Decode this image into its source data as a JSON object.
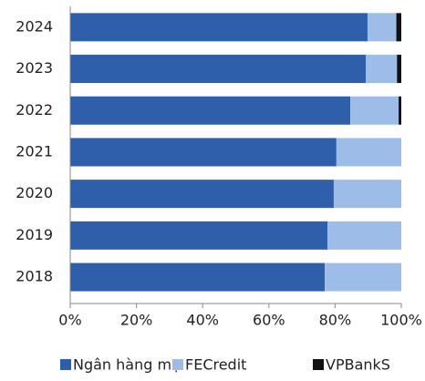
{
  "chart_data": {
    "type": "stacked-barh",
    "categories": [
      "2024",
      "2023",
      "2022",
      "2021",
      "2020",
      "2019",
      "2018"
    ],
    "series": [
      {
        "name": "Ngân hàng mẹ",
        "color": "#2f5eab",
        "values": [
          89.8,
          89.3,
          84.6,
          80.4,
          79.6,
          77.7,
          76.9
        ]
      },
      {
        "name": "FECredit",
        "color": "#9dbde8",
        "values": [
          8.7,
          9.4,
          14.6,
          19.6,
          20.4,
          22.3,
          23.1
        ]
      },
      {
        "name": "VPBankS",
        "color": "#111111",
        "values": [
          1.5,
          1.3,
          0.8,
          0,
          0,
          0,
          0
        ]
      }
    ],
    "xlim": [
      0,
      100
    ],
    "xticks": [
      {
        "value": 0,
        "label": "0%"
      },
      {
        "value": 20,
        "label": "20%"
      },
      {
        "value": 40,
        "label": "40%"
      },
      {
        "value": 60,
        "label": "60%"
      },
      {
        "value": 80,
        "label": "80%"
      },
      {
        "value": 100,
        "label": "100%"
      }
    ],
    "legend": "bottom"
  }
}
